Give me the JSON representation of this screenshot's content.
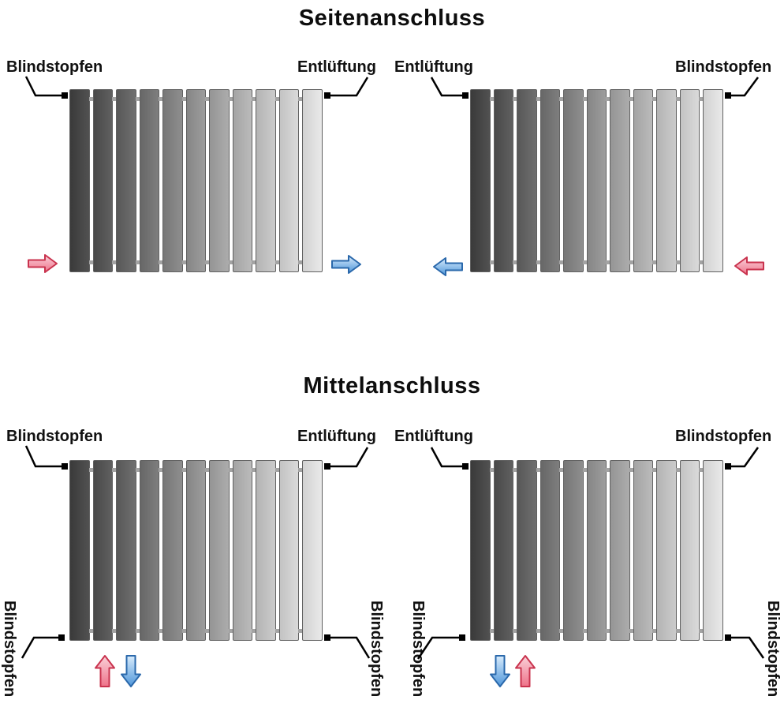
{
  "titles": {
    "seiten": "Seitenanschluss",
    "mittel": "Mittelanschluss"
  },
  "diagrams": {
    "seiten_left": {
      "top_left": "Blindstopfen",
      "top_right": "Entlüftung"
    },
    "seiten_right": {
      "top_left": "Entlüftung",
      "top_right": "Blindstopfen"
    },
    "mittel_left": {
      "top_left": "Blindstopfen",
      "top_right": "Entlüftung",
      "bottom_left": "Blindstopfen",
      "bottom_right": "Blindstopfen"
    },
    "mittel_right": {
      "top_left": "Entlüftung",
      "top_right": "Blindstopfen",
      "bottom_left": "Blindstopfen",
      "bottom_right": "Blindstopfen"
    }
  },
  "radiator": {
    "panel_count": 11,
    "panel_shades": [
      [
        "#3a3a3a",
        "#515151"
      ],
      [
        "#494949",
        "#606060"
      ],
      [
        "#585858",
        "#6f6f6f"
      ],
      [
        "#676767",
        "#7e7e7e"
      ],
      [
        "#777777",
        "#8e8e8e"
      ],
      [
        "#868686",
        "#9d9d9d"
      ],
      [
        "#959595",
        "#acacac"
      ],
      [
        "#a4a4a4",
        "#bbbbbb"
      ],
      [
        "#b4b4b4",
        "#cbcbcb"
      ],
      [
        "#c3c3c3",
        "#dadada"
      ],
      [
        "#d2d2d2",
        "#e9e9e9"
      ]
    ]
  },
  "icons": {
    "hot_flow": "red-block-arrow",
    "cool_flow": "blue-block-arrow",
    "connection_plug": "black-square"
  },
  "colors": {
    "hot_flow_outline": "#c9334e",
    "hot_flow_light": "#fad2da",
    "hot_flow_dark": "#ee7289",
    "cool_flow_outline": "#2a68ab",
    "cool_flow_light": "#d9ecfc",
    "cool_flow_dark": "#4e96da",
    "connector": "#000000"
  }
}
